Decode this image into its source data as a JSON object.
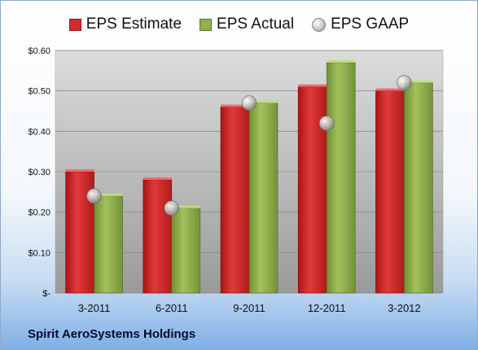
{
  "company": "Spirit AeroSystems Holdings",
  "chart_data": {
    "type": "bar",
    "title": "",
    "xlabel": "",
    "ylabel": "",
    "categories": [
      "3-2011",
      "6-2011",
      "9-2011",
      "12-2011",
      "3-2012"
    ],
    "series": [
      {
        "name": "EPS Estimate",
        "type": "bar",
        "color": "#d42a2a",
        "values": [
          0.3,
          0.28,
          0.46,
          0.51,
          0.5
        ]
      },
      {
        "name": "EPS Actual",
        "type": "bar",
        "color": "#8fb04a",
        "values": [
          0.24,
          0.21,
          0.47,
          0.57,
          0.52
        ]
      },
      {
        "name": "EPS GAAP",
        "type": "scatter",
        "color": "#b8b8b8",
        "values": [
          0.24,
          0.21,
          0.47,
          0.42,
          0.52
        ]
      }
    ],
    "ylim": [
      0,
      0.6
    ],
    "yticks": [
      0,
      0.1,
      0.2,
      0.3,
      0.4,
      0.5,
      0.6
    ],
    "ytick_labels": [
      "$-",
      "$0.10",
      "$0.20",
      "$0.30",
      "$0.40",
      "$0.50",
      "$0.60"
    ],
    "grid": true,
    "legend": "top-center"
  }
}
